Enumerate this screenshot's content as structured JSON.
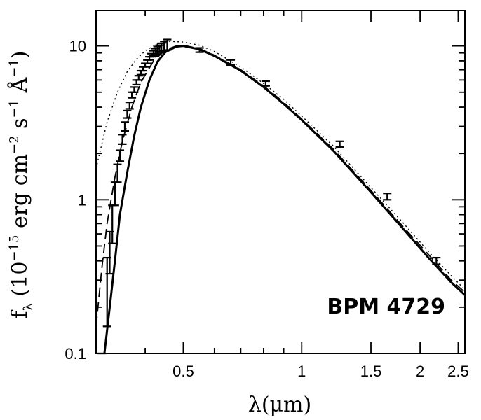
{
  "chart_data": {
    "type": "line",
    "title": "",
    "xlabel": "λ(μm)",
    "ylabel": "f_λ (10^-15 erg cm^-2 s^-1 Å^-1)",
    "ylabel_parts": {
      "f": "f",
      "lambda_sub": "λ",
      "open": " (10",
      "exp15": "−15",
      "erg_cm": " erg cm",
      "exp2": "−2",
      "s": " s",
      "exp1a": "−1",
      "angstrom": " Å",
      "exp1b": "−1",
      "close": ")"
    },
    "xscale": "log",
    "yscale": "log",
    "xlim": [
      0.3,
      2.6
    ],
    "ylim": [
      0.1,
      17
    ],
    "x_ticks": [
      {
        "value": 0.5,
        "label": "0.5"
      },
      {
        "value": 1,
        "label": "1"
      },
      {
        "value": 1.5,
        "label": "1.5"
      },
      {
        "value": 2,
        "label": "2"
      },
      {
        "value": 2.5,
        "label": "2.5"
      }
    ],
    "x_minor_ticks": [
      0.4,
      0.6,
      0.7,
      0.8,
      0.9
    ],
    "y_ticks": [
      {
        "value": 0.1,
        "label": "0.1"
      },
      {
        "value": 1,
        "label": "1"
      },
      {
        "value": 10,
        "label": "10"
      }
    ],
    "y_minor_ticks": [
      0.2,
      0.3,
      0.4,
      0.5,
      0.6,
      0.7,
      0.8,
      0.9,
      2,
      3,
      4,
      5,
      6,
      7,
      8,
      9
    ],
    "annotation": "BPM 4729",
    "grid": false,
    "series": [
      {
        "style": "solid",
        "x": [
          0.315,
          0.325,
          0.335,
          0.345,
          0.36,
          0.375,
          0.39,
          0.41,
          0.43,
          0.45,
          0.48,
          0.5,
          0.55,
          0.6,
          0.7,
          0.8,
          0.9,
          1.0,
          1.2,
          1.5,
          1.8,
          2.1,
          2.4,
          2.6
        ],
        "y": [
          0.1,
          0.2,
          0.4,
          0.8,
          1.5,
          2.6,
          4.0,
          6.0,
          7.9,
          9.1,
          9.9,
          10.0,
          9.5,
          8.6,
          6.9,
          5.4,
          4.2,
          3.3,
          2.1,
          1.12,
          0.66,
          0.42,
          0.29,
          0.24
        ]
      },
      {
        "style": "dashed",
        "x": [
          0.3,
          0.31,
          0.32,
          0.335,
          0.35,
          0.37,
          0.39,
          0.42,
          0.45,
          0.48,
          0.5,
          0.55,
          0.6,
          0.7,
          0.8,
          0.9,
          1.0,
          1.2,
          1.5,
          1.8,
          2.1,
          2.4,
          2.6
        ],
        "y": [
          0.15,
          0.35,
          0.7,
          1.4,
          2.4,
          4.0,
          5.8,
          8.0,
          9.4,
          10.0,
          10.1,
          9.6,
          8.7,
          7.0,
          5.5,
          4.3,
          3.35,
          2.15,
          1.15,
          0.68,
          0.44,
          0.3,
          0.25
        ]
      },
      {
        "style": "dotted",
        "x": [
          0.3,
          0.32,
          0.34,
          0.36,
          0.38,
          0.4,
          0.43,
          0.46,
          0.5,
          0.55,
          0.6,
          0.7,
          0.8,
          0.9,
          1.0,
          1.2,
          1.5,
          1.8,
          2.1,
          2.4,
          2.6
        ],
        "y": [
          1.6,
          3.2,
          5.0,
          6.8,
          8.2,
          9.3,
          10.3,
          10.7,
          10.6,
          10.1,
          9.2,
          7.3,
          5.7,
          4.5,
          3.5,
          2.25,
          1.2,
          0.72,
          0.46,
          0.32,
          0.26
        ]
      }
    ],
    "error_bar_points": [
      {
        "x": 0.31,
        "y": 0.1,
        "err_low": 0.1,
        "err_high": 0.1
      },
      {
        "x": 0.32,
        "y": 0.28,
        "err_low": 0.15,
        "err_high": 0.42
      },
      {
        "x": 0.325,
        "y": 0.45,
        "err_low": 0.33,
        "err_high": 0.62
      },
      {
        "x": 0.33,
        "y": 0.7,
        "err_low": 0.52,
        "err_high": 0.92
      },
      {
        "x": 0.335,
        "y": 1.1,
        "err_low": 0.92,
        "err_high": 1.3
      },
      {
        "x": 0.34,
        "y": 1.5,
        "err_low": 1.3,
        "err_high": 1.7
      },
      {
        "x": 0.345,
        "y": 1.95,
        "err_low": 1.78,
        "err_high": 2.1
      },
      {
        "x": 0.35,
        "y": 2.5,
        "err_low": 2.3,
        "err_high": 2.65
      },
      {
        "x": 0.355,
        "y": 3.0,
        "err_low": 2.8,
        "err_high": 3.2
      },
      {
        "x": 0.36,
        "y": 3.6,
        "err_low": 3.4,
        "err_high": 3.8
      },
      {
        "x": 0.365,
        "y": 4.1,
        "err_low": 3.9,
        "err_high": 4.3
      },
      {
        "x": 0.37,
        "y": 4.8,
        "err_low": 4.6,
        "err_high": 5.0
      },
      {
        "x": 0.375,
        "y": 5.2,
        "err_low": 5.0,
        "err_high": 5.4
      },
      {
        "x": 0.38,
        "y": 5.8,
        "err_low": 5.6,
        "err_high": 6.0
      },
      {
        "x": 0.385,
        "y": 6.2,
        "err_low": 6.0,
        "err_high": 6.4
      },
      {
        "x": 0.39,
        "y": 6.7,
        "err_low": 6.5,
        "err_high": 6.9
      },
      {
        "x": 0.395,
        "y": 7.1,
        "err_low": 6.9,
        "err_high": 7.3
      },
      {
        "x": 0.4,
        "y": 7.5,
        "err_low": 7.3,
        "err_high": 7.7
      },
      {
        "x": 0.405,
        "y": 7.9,
        "err_low": 7.7,
        "err_high": 8.1
      },
      {
        "x": 0.41,
        "y": 8.3,
        "err_low": 8.1,
        "err_high": 8.5
      },
      {
        "x": 0.415,
        "y": 8.7,
        "err_low": 8.5,
        "err_high": 8.9
      },
      {
        "x": 0.42,
        "y": 8.9,
        "err_low": 8.6,
        "err_high": 9.3
      },
      {
        "x": 0.425,
        "y": 9.2,
        "err_low": 8.8,
        "err_high": 9.6
      },
      {
        "x": 0.43,
        "y": 9.4,
        "err_low": 8.9,
        "err_high": 9.9
      },
      {
        "x": 0.435,
        "y": 9.6,
        "err_low": 9.1,
        "err_high": 10.1
      },
      {
        "x": 0.44,
        "y": 9.8,
        "err_low": 9.2,
        "err_high": 10.4
      },
      {
        "x": 0.447,
        "y": 10.0,
        "err_low": 9.3,
        "err_high": 10.7
      },
      {
        "x": 0.455,
        "y": 10.2,
        "err_low": 9.4,
        "err_high": 11.0
      },
      {
        "x": 0.55,
        "y": 9.4,
        "err_low": 9.1,
        "err_high": 9.7
      },
      {
        "x": 0.66,
        "y": 7.8,
        "err_low": 7.5,
        "err_high": 8.1
      },
      {
        "x": 0.81,
        "y": 5.7,
        "err_low": 5.5,
        "err_high": 5.9
      },
      {
        "x": 1.25,
        "y": 2.3,
        "err_low": 2.2,
        "err_high": 2.4
      },
      {
        "x": 1.65,
        "y": 1.05,
        "err_low": 1.0,
        "err_high": 1.1
      },
      {
        "x": 2.2,
        "y": 0.4,
        "err_low": 0.38,
        "err_high": 0.42
      }
    ]
  }
}
